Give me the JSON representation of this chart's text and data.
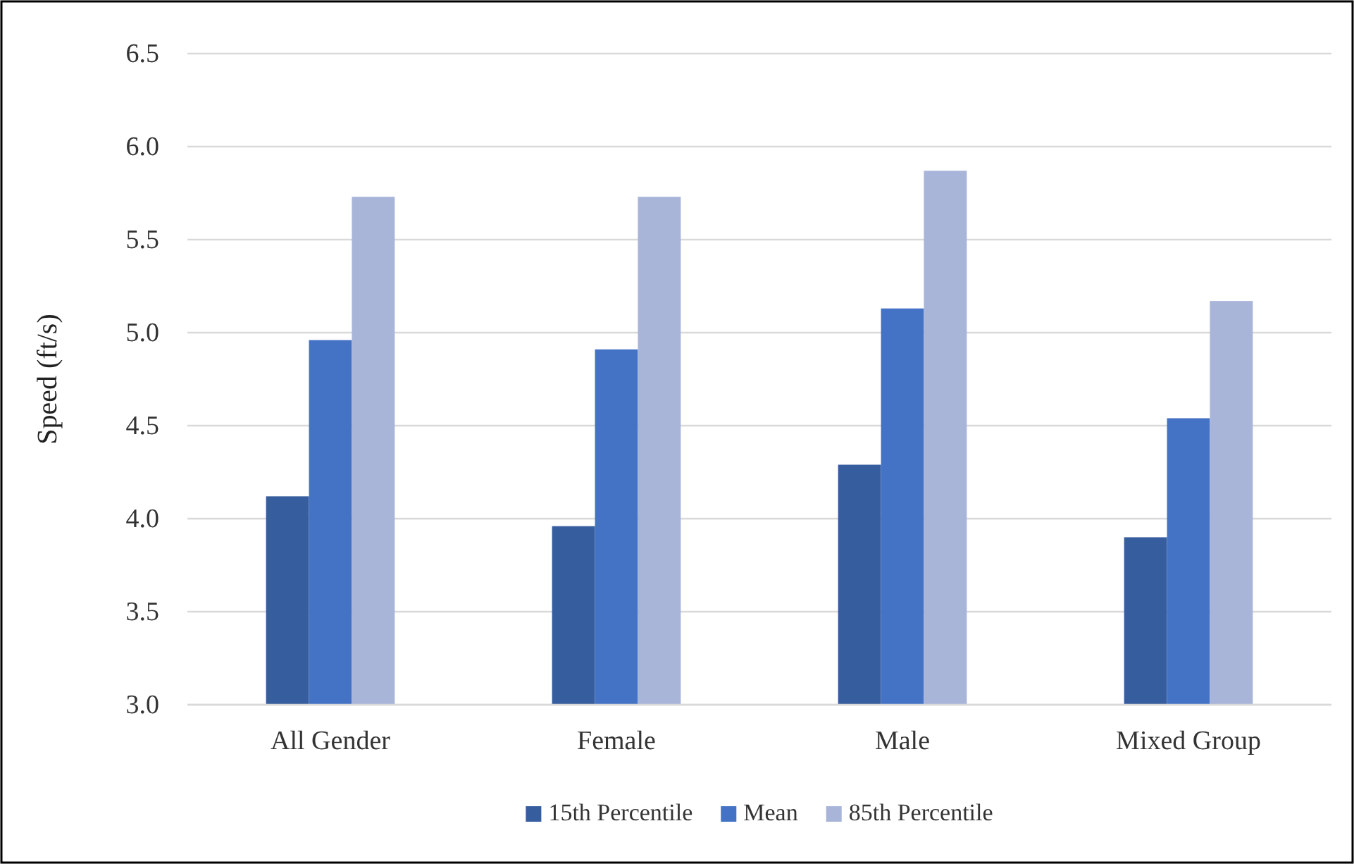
{
  "chart_data": {
    "type": "bar",
    "ylabel": "Speed (ft/s)",
    "categories": [
      "All Gender",
      "Female",
      "Male",
      "Mixed Group"
    ],
    "series": [
      {
        "name": "15th Percentile",
        "color": "#365e9f",
        "values": [
          4.12,
          3.96,
          4.29,
          3.9
        ]
      },
      {
        "name": "Mean",
        "color": "#4472c4",
        "values": [
          4.96,
          4.91,
          5.13,
          4.54
        ]
      },
      {
        "name": "85th Percentile",
        "color": "#a8b5d9",
        "values": [
          5.73,
          5.73,
          5.87,
          5.17
        ]
      }
    ],
    "ylim": [
      3.0,
      6.5
    ],
    "yticks": [
      {
        "value": 3,
        "label": "3.0"
      },
      {
        "value": 3.5,
        "label": "3.5"
      },
      {
        "value": 4,
        "label": "4.0"
      },
      {
        "value": 4.5,
        "label": "4.5"
      },
      {
        "value": 5,
        "label": "5.0"
      },
      {
        "value": 5.5,
        "label": "5.5"
      },
      {
        "value": 6,
        "label": "6.0"
      },
      {
        "value": 6.5,
        "label": "6.5"
      }
    ],
    "grid": "y",
    "legend": "bottom"
  }
}
